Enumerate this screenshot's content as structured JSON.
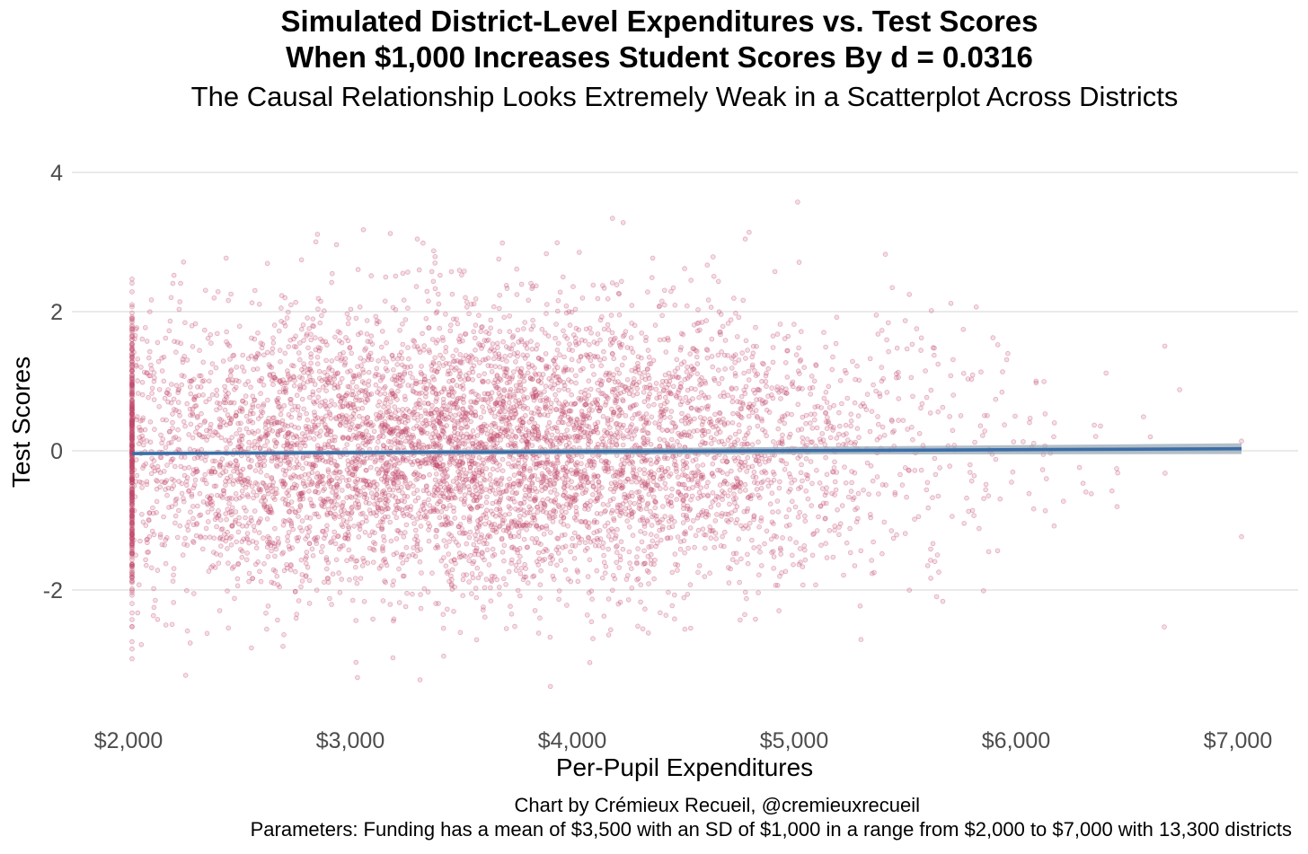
{
  "chart_data": {
    "type": "scatter",
    "title_line1": "Simulated District-Level Expenditures vs. Test Scores",
    "title_line2": "When $1,000 Increases Student Scores By d = 0.0316",
    "subtitle": "The Causal Relationship Looks Extremely Weak in a Scatterplot Across Districts",
    "xlabel": "Per-Pupil Expenditures",
    "ylabel": "Test Scores",
    "x_ticks": [
      2000,
      3000,
      4000,
      5000,
      6000,
      7000
    ],
    "x_tick_labels": [
      "$2,000",
      "$3,000",
      "$4,000",
      "$5,000",
      "$6,000",
      "$7,000"
    ],
    "y_ticks": [
      -2,
      0,
      2,
      4
    ],
    "y_tick_labels": [
      "-2",
      "0",
      "2",
      "4"
    ],
    "xlim": [
      1950,
      7250
    ],
    "ylim": [
      -3.9,
      4.4
    ],
    "grid": true,
    "n_points": 13300,
    "funding_mean": 3500,
    "funding_sd": 1000,
    "funding_min": 2000,
    "funding_max": 7000,
    "effect_size_d_per_1000": 0.0316,
    "point_color": "#c0476a",
    "point_opacity": 0.3,
    "trend_line": {
      "x_start": 2000,
      "y_start": -0.04,
      "x_end": 7000,
      "y_end": 0.03,
      "color": "#3a6ea8",
      "band_color": "#9aa8b4"
    }
  },
  "caption_credit": "Chart by Crémieux Recueil, @cremieuxrecueil",
  "caption_params": "Parameters: Funding has a mean of $3,500 with an SD of $1,000 in a range from $2,000 to $7,000 with 13,300 districts"
}
